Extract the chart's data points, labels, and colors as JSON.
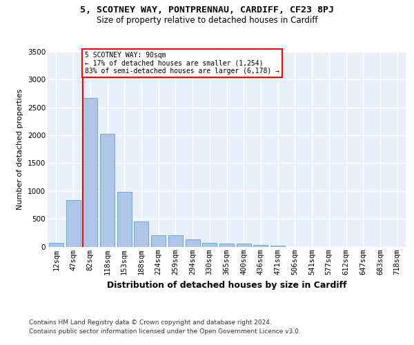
{
  "title1": "5, SCOTNEY WAY, PONTPRENNAU, CARDIFF, CF23 8PJ",
  "title2": "Size of property relative to detached houses in Cardiff",
  "xlabel": "Distribution of detached houses by size in Cardiff",
  "ylabel": "Number of detached properties",
  "categories": [
    "12sqm",
    "47sqm",
    "82sqm",
    "118sqm",
    "153sqm",
    "188sqm",
    "224sqm",
    "259sqm",
    "294sqm",
    "330sqm",
    "365sqm",
    "400sqm",
    "436sqm",
    "471sqm",
    "506sqm",
    "541sqm",
    "577sqm",
    "612sqm",
    "647sqm",
    "683sqm",
    "718sqm"
  ],
  "values": [
    65,
    840,
    2670,
    2020,
    990,
    450,
    205,
    200,
    130,
    70,
    55,
    50,
    30,
    20,
    0,
    0,
    0,
    0,
    0,
    0,
    0
  ],
  "bar_color": "#aec6e8",
  "bar_edge_color": "#5a9fd4",
  "vline_idx": 2,
  "vline_color": "red",
  "annotation_line1": "5 SCOTNEY WAY: 90sqm",
  "annotation_line2": "← 17% of detached houses are smaller (1,254)",
  "annotation_line3": "83% of semi-detached houses are larger (6,178) →",
  "annotation_box_facecolor": "white",
  "annotation_box_edgecolor": "red",
  "ylim": [
    0,
    3500
  ],
  "yticks": [
    0,
    500,
    1000,
    1500,
    2000,
    2500,
    3000,
    3500
  ],
  "footnote1": "Contains HM Land Registry data © Crown copyright and database right 2024.",
  "footnote2": "Contains public sector information licensed under the Open Government Licence v3.0.",
  "bg_color": "#eaf0fb",
  "grid_color": "#ffffff",
  "title1_fontsize": 9.5,
  "title2_fontsize": 8.5,
  "xlabel_fontsize": 9,
  "ylabel_fontsize": 8,
  "tick_fontsize": 7.5,
  "footnote_fontsize": 6.5
}
